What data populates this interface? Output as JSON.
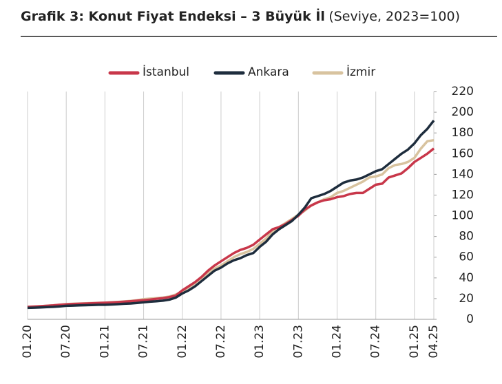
{
  "chart_data": {
    "type": "line",
    "title": "Grafik 3: Konut Fiyat Endeksi – 3 Büyük İl",
    "subtitle": "(Seviye, 2023=100)",
    "categories": [
      "01.20",
      null,
      null,
      null,
      null,
      null,
      "07.20",
      null,
      null,
      null,
      null,
      null,
      "01.21",
      null,
      null,
      null,
      null,
      null,
      "07.21",
      null,
      null,
      null,
      null,
      null,
      "01.22",
      null,
      null,
      null,
      null,
      null,
      "07.22",
      null,
      null,
      null,
      null,
      null,
      "01.23",
      null,
      null,
      null,
      null,
      null,
      "07.23",
      null,
      null,
      null,
      null,
      null,
      "01.24",
      null,
      null,
      null,
      null,
      null,
      "07.24",
      null,
      null,
      null,
      null,
      null,
      "01.25",
      null,
      null,
      "04.25"
    ],
    "series": [
      {
        "name": "İstanbul",
        "color": "#c8374a",
        "values": [
          12,
          12.3,
          12.6,
          13,
          13.4,
          14,
          14.5,
          14.8,
          15,
          15.2,
          15.5,
          15.8,
          16,
          16.3,
          16.6,
          17,
          17.5,
          18,
          18.5,
          19,
          19.8,
          20.5,
          21.5,
          23,
          28,
          32,
          36,
          41,
          47,
          52,
          56,
          60,
          64,
          67,
          69,
          72,
          77,
          82,
          87,
          89,
          92,
          96,
          100,
          106,
          110,
          113,
          115,
          116,
          118,
          119,
          121,
          122,
          122,
          126,
          130,
          131,
          137,
          139,
          141,
          146,
          152,
          156,
          160,
          165
        ]
      },
      {
        "name": "Ankara",
        "color": "#1e2d3d",
        "values": [
          11,
          11.2,
          11.5,
          11.8,
          12,
          12.5,
          13,
          13.2,
          13.4,
          13.6,
          13.8,
          14,
          14,
          14.3,
          14.6,
          15,
          15.3,
          15.8,
          16.5,
          17,
          17.5,
          18,
          19,
          21,
          25,
          28,
          32,
          37,
          42,
          47,
          50,
          54,
          57,
          59,
          62,
          64,
          70,
          75,
          82,
          87,
          91,
          95,
          101,
          108,
          117,
          119,
          121,
          124,
          128,
          132,
          134,
          135,
          137,
          140,
          143,
          145,
          150,
          155,
          160,
          164,
          170,
          178,
          184,
          192
        ]
      },
      {
        "name": "İzmir",
        "color": "#d8c39f",
        "values": [
          12,
          12.3,
          12.6,
          13,
          13.4,
          14,
          14.6,
          15,
          15.2,
          15.4,
          15.7,
          15.9,
          16,
          16.4,
          16.8,
          17.3,
          17.8,
          18.5,
          19.5,
          20,
          20.5,
          21,
          22,
          24,
          27,
          31,
          35,
          40,
          45,
          49,
          52,
          56,
          60,
          63,
          65,
          68,
          73,
          78,
          85,
          89,
          93,
          97,
          101,
          105,
          110,
          113,
          116,
          118,
          122,
          124,
          127,
          130,
          133,
          137,
          138,
          140,
          146,
          149,
          150,
          152,
          156,
          165,
          172,
          173
        ]
      }
    ],
    "ylim": [
      0,
      220
    ],
    "yticks": [
      0,
      20,
      40,
      60,
      80,
      100,
      120,
      140,
      160,
      180,
      200,
      220
    ],
    "grid": "x",
    "legend": "top"
  }
}
